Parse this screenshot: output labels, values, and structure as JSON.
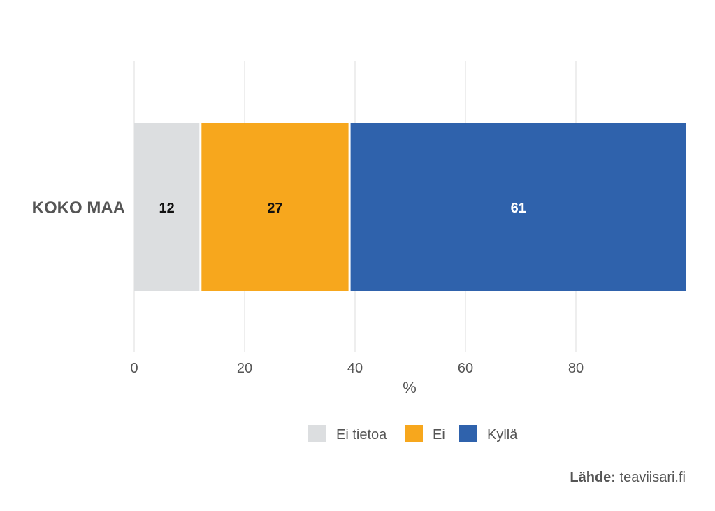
{
  "chart_data": {
    "type": "bar",
    "orientation": "horizontal",
    "stacked": true,
    "categories": [
      "KOKO MAA"
    ],
    "series": [
      {
        "name": "Ei tietoa",
        "values": [
          12
        ],
        "color": "#dcdee0",
        "label_color": "#111111"
      },
      {
        "name": "Ei",
        "values": [
          27
        ],
        "color": "#f7a71d",
        "label_color": "#111111"
      },
      {
        "name": "Kyllä",
        "values": [
          61
        ],
        "color": "#2f62ac",
        "label_color": "#ffffff"
      }
    ],
    "xlabel": "%",
    "xlim": [
      0,
      100
    ],
    "xticks": [
      0,
      20,
      40,
      60,
      80
    ],
    "grid": "vertical",
    "legend": "bottom"
  },
  "source": {
    "label": "Lähde:",
    "value": "teaviisari.fi"
  }
}
